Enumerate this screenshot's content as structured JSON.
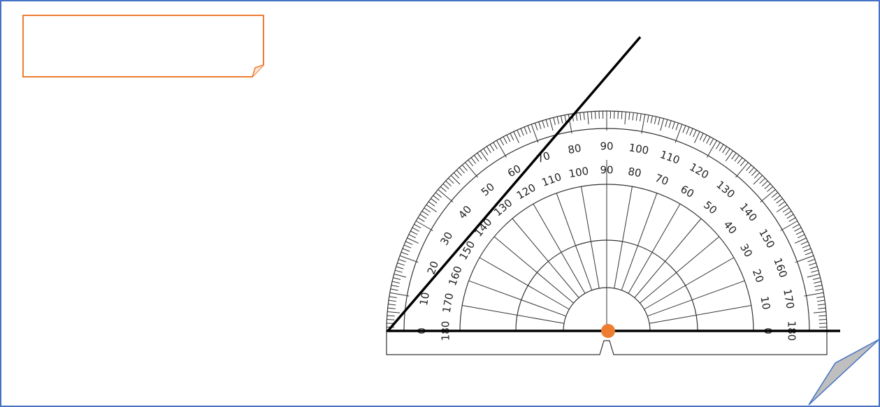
{
  "protractor": {
    "outer_scale": [
      0,
      10,
      20,
      30,
      40,
      50,
      60,
      70,
      80,
      90,
      100,
      110,
      120,
      130,
      140,
      150,
      160,
      170,
      180
    ],
    "inner_scale": [
      180,
      170,
      160,
      150,
      140,
      130,
      120,
      110,
      100,
      90,
      80,
      70,
      60,
      50,
      40,
      30,
      20,
      10,
      0
    ]
  }
}
